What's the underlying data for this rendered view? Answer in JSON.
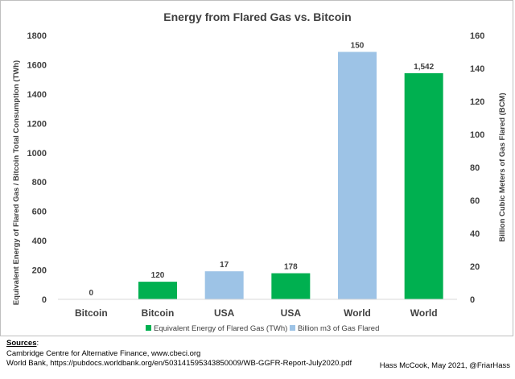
{
  "chart_data": {
    "type": "bar",
    "title": "Energy from Flared Gas vs. Bitcoin",
    "categories": [
      "Bitcoin",
      "Bitcoin",
      "USA",
      "USA",
      "World",
      "World"
    ],
    "bars": [
      {
        "category": "Bitcoin",
        "series": "Billion m3 of Gas Flared",
        "axis": "right",
        "value": 0,
        "label": "0"
      },
      {
        "category": "Bitcoin",
        "series": "Equivalent Energy of Flared Gas (TWh)",
        "axis": "left",
        "value": 120,
        "label": "120"
      },
      {
        "category": "USA",
        "series": "Billion m3 of Gas Flared",
        "axis": "right",
        "value": 17,
        "label": "17"
      },
      {
        "category": "USA",
        "series": "Equivalent Energy of Flared Gas (TWh)",
        "axis": "left",
        "value": 178,
        "label": "178"
      },
      {
        "category": "World",
        "series": "Billion m3 of Gas Flared",
        "axis": "right",
        "value": 150,
        "label": "150"
      },
      {
        "category": "World",
        "series": "Equivalent Energy of Flared Gas (TWh)",
        "axis": "left",
        "value": 1542,
        "label": "1,542"
      }
    ],
    "series": [
      {
        "name": "Equivalent Energy of Flared Gas (TWh)",
        "color": "#00b050",
        "axis": "left"
      },
      {
        "name": "Billion m3 of Gas Flared",
        "color": "#9dc3e6",
        "axis": "right"
      }
    ],
    "ylabel": "Equivalent Energy of Flared Gas / Bitcoin Total Consumption (TWh)",
    "y2label": "Billion Cubic Meters of Gas Flared (BCM)",
    "ylim": [
      0,
      1800
    ],
    "y2lim": [
      0,
      160
    ],
    "yticks": [
      "0",
      "200",
      "400",
      "600",
      "800",
      "1000",
      "1200",
      "1400",
      "1600",
      "1800"
    ],
    "y2ticks": [
      "0",
      "20",
      "40",
      "60",
      "80",
      "100",
      "120",
      "140",
      "160"
    ],
    "legend_position": "bottom",
    "grid": false
  },
  "footer": {
    "sources_title": "Sources",
    "sources_colon": ":",
    "source_1": "Cambridge Centre for Alternative Finance, www.cbeci.org",
    "source_2": "World Bank, https://pubdocs.worldbank.org/en/503141595343850009/WB-GGFR-Report-July2020.pdf",
    "credit": "Hass McCook, May 2021, @FriarHass"
  }
}
